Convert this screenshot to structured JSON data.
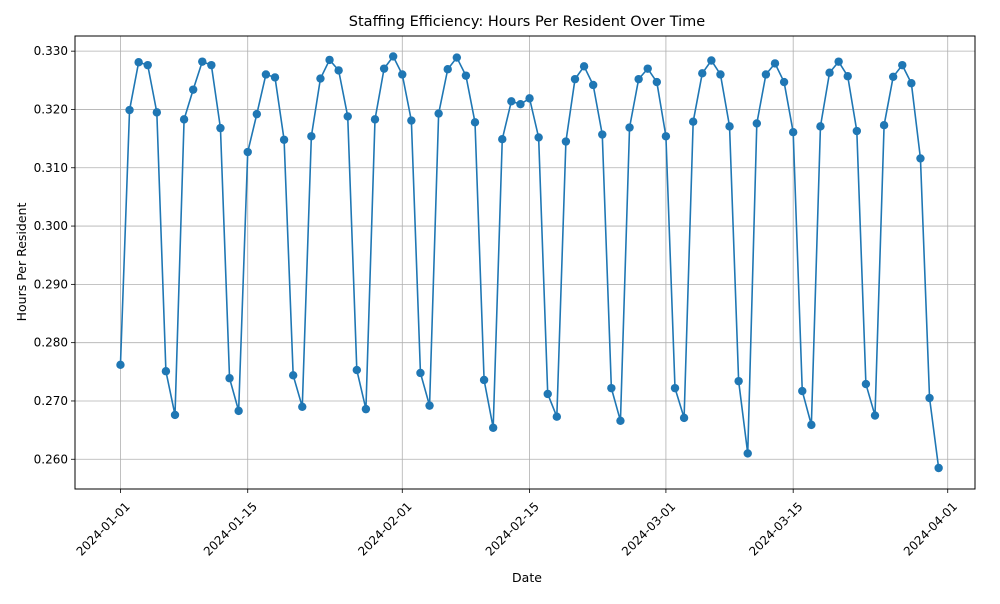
{
  "chart_data": {
    "type": "line",
    "title": "Staffing Efficiency: Hours Per Resident Over Time",
    "xlabel": "Date",
    "ylabel": "Hours Per Resident",
    "grid": true,
    "line_color": "#1f77b4",
    "xlim": [
      "2023-12-27",
      "2024-04-04"
    ],
    "ylim": [
      0.2549,
      0.3326
    ],
    "x_ticks": [
      "2024-01-01",
      "2024-01-15",
      "2024-02-01",
      "2024-02-15",
      "2024-03-01",
      "2024-03-15",
      "2024-04-01"
    ],
    "y_ticks": [
      0.26,
      0.27,
      0.28,
      0.29,
      0.3,
      0.31,
      0.32,
      0.33
    ],
    "y_tick_labels": [
      "0.260",
      "0.270",
      "0.280",
      "0.290",
      "0.300",
      "0.310",
      "0.320",
      "0.330"
    ],
    "start_date": "2024-01-01",
    "series": [
      {
        "values": [
          0.2762,
          0.3199,
          0.3281,
          0.3276,
          0.3195,
          0.2751,
          0.2676,
          0.3183,
          0.3234,
          0.3282,
          0.3276,
          0.3168,
          0.2739,
          0.2683,
          0.3127,
          0.3192,
          0.326,
          0.3255,
          0.3148,
          0.2744,
          0.269,
          0.3154,
          0.3253,
          0.3285,
          0.3267,
          0.3188,
          0.2753,
          0.2686,
          0.3183,
          0.327,
          0.3291,
          0.326,
          0.3181,
          0.2748,
          0.2692,
          0.3193,
          0.3269,
          0.3289,
          0.3258,
          0.3178,
          0.2736,
          0.2654,
          0.3149,
          0.3214,
          0.3209,
          0.3219,
          0.3152,
          0.2712,
          0.2673,
          0.3145,
          0.3252,
          0.3274,
          0.3242,
          0.3157,
          0.2722,
          0.2666,
          0.3169,
          0.3252,
          0.327,
          0.3247,
          0.3154,
          0.2722,
          0.2671,
          0.3179,
          0.3262,
          0.3284,
          0.326,
          0.3171,
          0.2734,
          0.261,
          0.3176,
          0.326,
          0.3279,
          0.3247,
          0.3161,
          0.2717,
          0.2659,
          0.3171,
          0.3263,
          0.3282,
          0.3257,
          0.3163,
          0.2729,
          0.2675,
          0.3173,
          0.3256,
          0.3276,
          0.3245,
          0.3116,
          0.2705,
          0.2585
        ]
      }
    ]
  }
}
